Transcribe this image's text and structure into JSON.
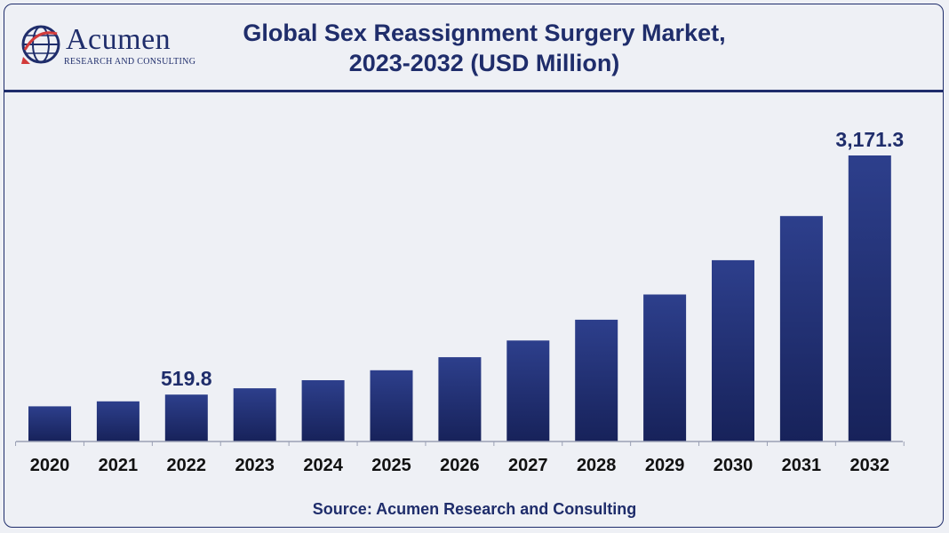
{
  "header": {
    "logo_name": "Acumen",
    "logo_tagline": "RESEARCH AND CONSULTING",
    "title_line1": "Global Sex Reassignment Surgery Market,",
    "title_line2": "2023-2032 (USD Million)"
  },
  "footer": {
    "source": "Source: Acumen Research and Consulting"
  },
  "colors": {
    "bar_top": "#2d3f8c",
    "bar_bottom": "#17225a",
    "text": "#1f2d6b",
    "axis": "#9aa0b4"
  },
  "chart_data": {
    "type": "bar",
    "title": "Global Sex Reassignment Surgery Market, 2023-2032 (USD Million)",
    "categories": [
      "2020",
      "2021",
      "2022",
      "2023",
      "2024",
      "2025",
      "2026",
      "2027",
      "2028",
      "2029",
      "2030",
      "2031",
      "2032"
    ],
    "values": [
      390,
      445,
      519.8,
      590,
      680,
      790,
      935,
      1120,
      1350,
      1630,
      2010,
      2500,
      3171.3
    ],
    "labels": [
      "",
      "",
      "519.8",
      "",
      "",
      "",
      "",
      "",
      "",
      "",
      "",
      "",
      "3,171.3"
    ],
    "xlabel": "",
    "ylabel": "",
    "ylim": [
      0,
      3171.3
    ],
    "grid": false,
    "legend": "none"
  }
}
